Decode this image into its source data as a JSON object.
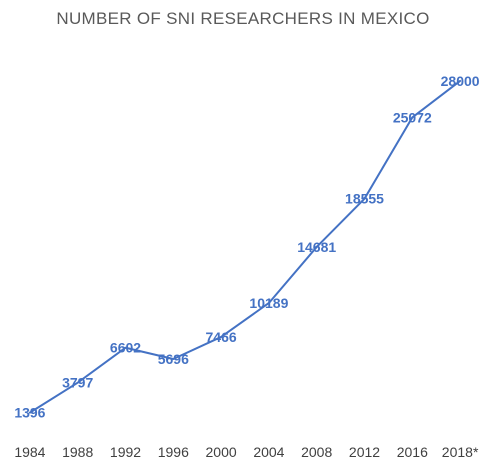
{
  "chart_data": {
    "type": "line",
    "title": "NUMBER OF SNI RESEARCHERS IN MEXICO",
    "xlabel": "",
    "ylabel": "",
    "categories": [
      "1984",
      "1988",
      "1992",
      "1996",
      "2000",
      "2004",
      "2008",
      "2012",
      "2016",
      "2018*"
    ],
    "series": [
      {
        "values": [
          1396,
          3797,
          6602,
          5696,
          7466,
          10189,
          14681,
          18555,
          25072,
          28000
        ],
        "color": "#4472C4"
      }
    ],
    "ylim": [
      0,
      30000
    ],
    "grid": false,
    "legend": "none",
    "data_labels": true
  }
}
